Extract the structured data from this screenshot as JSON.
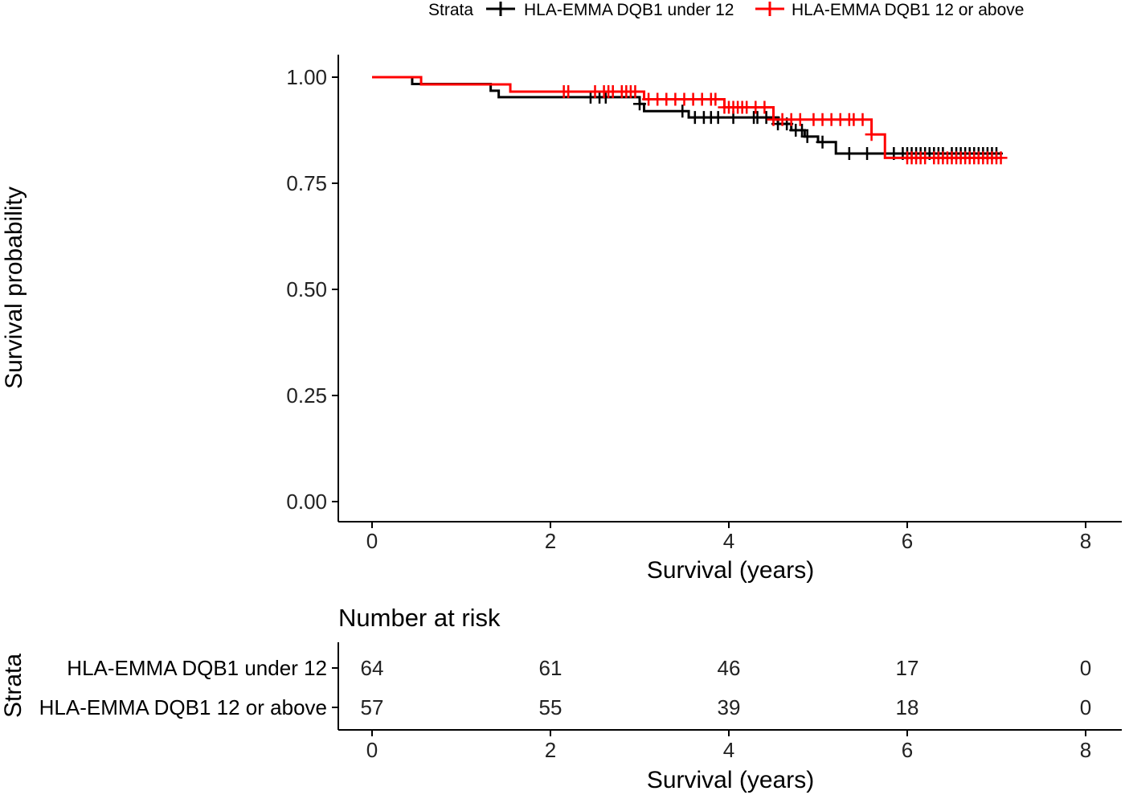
{
  "chart_data": [
    {
      "type": "line",
      "subtype": "kaplan-meier",
      "title": "",
      "xlabel": "Survival (years)",
      "ylabel": "Survival probability",
      "xlim": [
        0,
        8
      ],
      "ylim": [
        0,
        1
      ],
      "x_ticks": [
        0,
        2,
        4,
        6,
        8
      ],
      "x_tick_labels": [
        "0",
        "2",
        "4",
        "6",
        "8"
      ],
      "y_ticks": [
        0,
        0.25,
        0.5,
        0.75,
        1.0
      ],
      "y_tick_labels": [
        "0.00",
        "0.25",
        "0.50",
        "0.75",
        "1.00"
      ],
      "grid": false,
      "legend": {
        "title": "Strata",
        "position": "top",
        "entries": [
          "HLA-EMMA DQB1 under 12",
          "HLA-EMMA DQB1 12 or above"
        ]
      },
      "series": [
        {
          "name": "HLA-EMMA DQB1 under 12",
          "color": "#000000",
          "steps": [
            [
              0,
              1.0
            ],
            [
              0.45,
              0.984
            ],
            [
              1.33,
              0.968
            ],
            [
              1.42,
              0.953
            ],
            [
              3.0,
              0.937
            ],
            [
              3.05,
              0.92
            ],
            [
              3.55,
              0.905
            ],
            [
              4.55,
              0.89
            ],
            [
              4.7,
              0.875
            ],
            [
              4.85,
              0.86
            ],
            [
              5.0,
              0.847
            ],
            [
              5.2,
              0.82
            ],
            [
              7.05,
              0.82
            ]
          ],
          "censored": [
            2.45,
            2.55,
            2.62,
            3.0,
            3.48,
            3.62,
            3.72,
            3.8,
            3.88,
            4.05,
            4.28,
            4.32,
            4.42,
            4.5,
            4.55,
            4.65,
            4.75,
            4.82,
            4.88,
            5.05,
            5.35,
            5.55,
            5.85,
            5.95,
            6.0,
            6.05,
            6.1,
            6.15,
            6.2,
            6.25,
            6.3,
            6.35,
            6.4,
            6.5,
            6.55,
            6.6,
            6.65,
            6.7,
            6.75,
            6.8,
            6.85,
            6.9,
            6.95,
            7.0
          ]
        },
        {
          "name": "HLA-EMMA DQB1 12 or above",
          "color": "#ff0000",
          "steps": [
            [
              0,
              1.0
            ],
            [
              0.55,
              0.983
            ],
            [
              1.55,
              0.966
            ],
            [
              3.05,
              0.948
            ],
            [
              3.95,
              0.929
            ],
            [
              4.5,
              0.9
            ],
            [
              5.6,
              0.865
            ],
            [
              5.75,
              0.81
            ],
            [
              7.05,
              0.81
            ]
          ],
          "censored": [
            2.15,
            2.2,
            2.5,
            2.6,
            2.65,
            2.7,
            2.8,
            2.85,
            2.9,
            2.95,
            3.1,
            3.2,
            3.3,
            3.4,
            3.5,
            3.6,
            3.7,
            3.8,
            3.85,
            3.95,
            4.0,
            4.05,
            4.1,
            4.15,
            4.2,
            4.3,
            4.4,
            4.5,
            4.6,
            4.7,
            4.8,
            4.95,
            5.05,
            5.15,
            5.25,
            5.35,
            5.4,
            5.5,
            5.6,
            6.0,
            6.05,
            6.1,
            6.15,
            6.2,
            6.3,
            6.35,
            6.4,
            6.45,
            6.5,
            6.55,
            6.6,
            6.65,
            6.7,
            6.75,
            6.8,
            6.85,
            6.9,
            6.95,
            7.0,
            7.05
          ]
        }
      ]
    },
    {
      "type": "table",
      "title": "Number at risk",
      "xlabel": "Survival (years)",
      "ylabel": "Strata",
      "xlim": [
        0,
        8
      ],
      "x_ticks": [
        0,
        2,
        4,
        6,
        8
      ],
      "x_tick_labels": [
        "0",
        "2",
        "4",
        "6",
        "8"
      ],
      "rows": [
        {
          "name": "HLA-EMMA DQB1 under 12",
          "color": "#000000",
          "values": [
            "64",
            "61",
            "46",
            "17",
            "0"
          ]
        },
        {
          "name": "HLA-EMMA DQB1 12 or above",
          "color": "#ff0000",
          "values": [
            "57",
            "55",
            "39",
            "18",
            "0"
          ]
        }
      ]
    }
  ]
}
